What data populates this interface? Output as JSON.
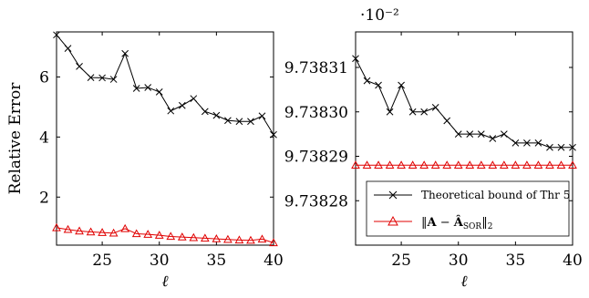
{
  "chart_data": [
    {
      "type": "line",
      "title": "",
      "xlabel": "ℓ",
      "ylabel": "Relative Error",
      "xlim": [
        21,
        40
      ],
      "ylim": [
        0.4,
        7.5
      ],
      "xticks": [
        "25",
        "30",
        "35",
        "40"
      ],
      "yticks": [
        "2",
        "4",
        "6"
      ],
      "grid": false,
      "x": [
        21,
        22,
        23,
        24,
        25,
        26,
        27,
        28,
        29,
        30,
        31,
        32,
        33,
        34,
        35,
        36,
        37,
        38,
        39,
        40
      ],
      "series": [
        {
          "name": "Theoretical bound of Thr 5",
          "color": "#000000",
          "marker": "x",
          "values": [
            7.4,
            6.95,
            6.35,
            5.98,
            5.97,
            5.92,
            6.78,
            5.62,
            5.65,
            5.5,
            4.87,
            5.05,
            5.28,
            4.85,
            4.72,
            4.55,
            4.52,
            4.52,
            4.7,
            4.08
          ]
        },
        {
          "name": "",
          "color": "#e00000",
          "marker": "triangle",
          "values": [
            0.98,
            0.92,
            0.87,
            0.84,
            0.82,
            0.8,
            0.95,
            0.78,
            0.76,
            0.73,
            0.69,
            0.67,
            0.65,
            0.63,
            0.61,
            0.59,
            0.57,
            0.56,
            0.6,
            0.48
          ]
        }
      ]
    },
    {
      "type": "line",
      "title": "",
      "xlabel": "ℓ",
      "ylabel": "",
      "scale_label": "·10⁻²",
      "xlim": [
        21,
        40
      ],
      "ylim": [
        9.73827,
        9.738318
      ],
      "xticks": [
        "25",
        "30",
        "35",
        "40"
      ],
      "yticks": [
        "9.73828",
        "9.73829",
        "9.73830",
        "9.73831"
      ],
      "grid": false,
      "legend_position": "bottom-right",
      "x": [
        21,
        22,
        23,
        24,
        25,
        26,
        27,
        28,
        29,
        30,
        31,
        32,
        33,
        34,
        35,
        36,
        37,
        38,
        39,
        40
      ],
      "series": [
        {
          "name": "Theoretical bound of Thr 5",
          "color": "#000000",
          "marker": "x",
          "values": [
            9.738312,
            9.738307,
            9.738306,
            9.7383,
            9.738306,
            9.7383,
            9.7383,
            9.738301,
            9.738298,
            9.738295,
            9.738295,
            9.738295,
            9.738294,
            9.738295,
            9.738293,
            9.738293,
            9.738293,
            9.738292,
            9.738292,
            9.738292
          ]
        },
        {
          "name": "",
          "color": "#e00000",
          "marker": "triangle",
          "values": [
            9.738288,
            9.738288,
            9.738288,
            9.738288,
            9.738288,
            9.738288,
            9.738288,
            9.738288,
            9.738288,
            9.738288,
            9.738288,
            9.738288,
            9.738288,
            9.738288,
            9.738288,
            9.738288,
            9.738288,
            9.738288,
            9.738288,
            9.738288
          ]
        }
      ]
    }
  ]
}
